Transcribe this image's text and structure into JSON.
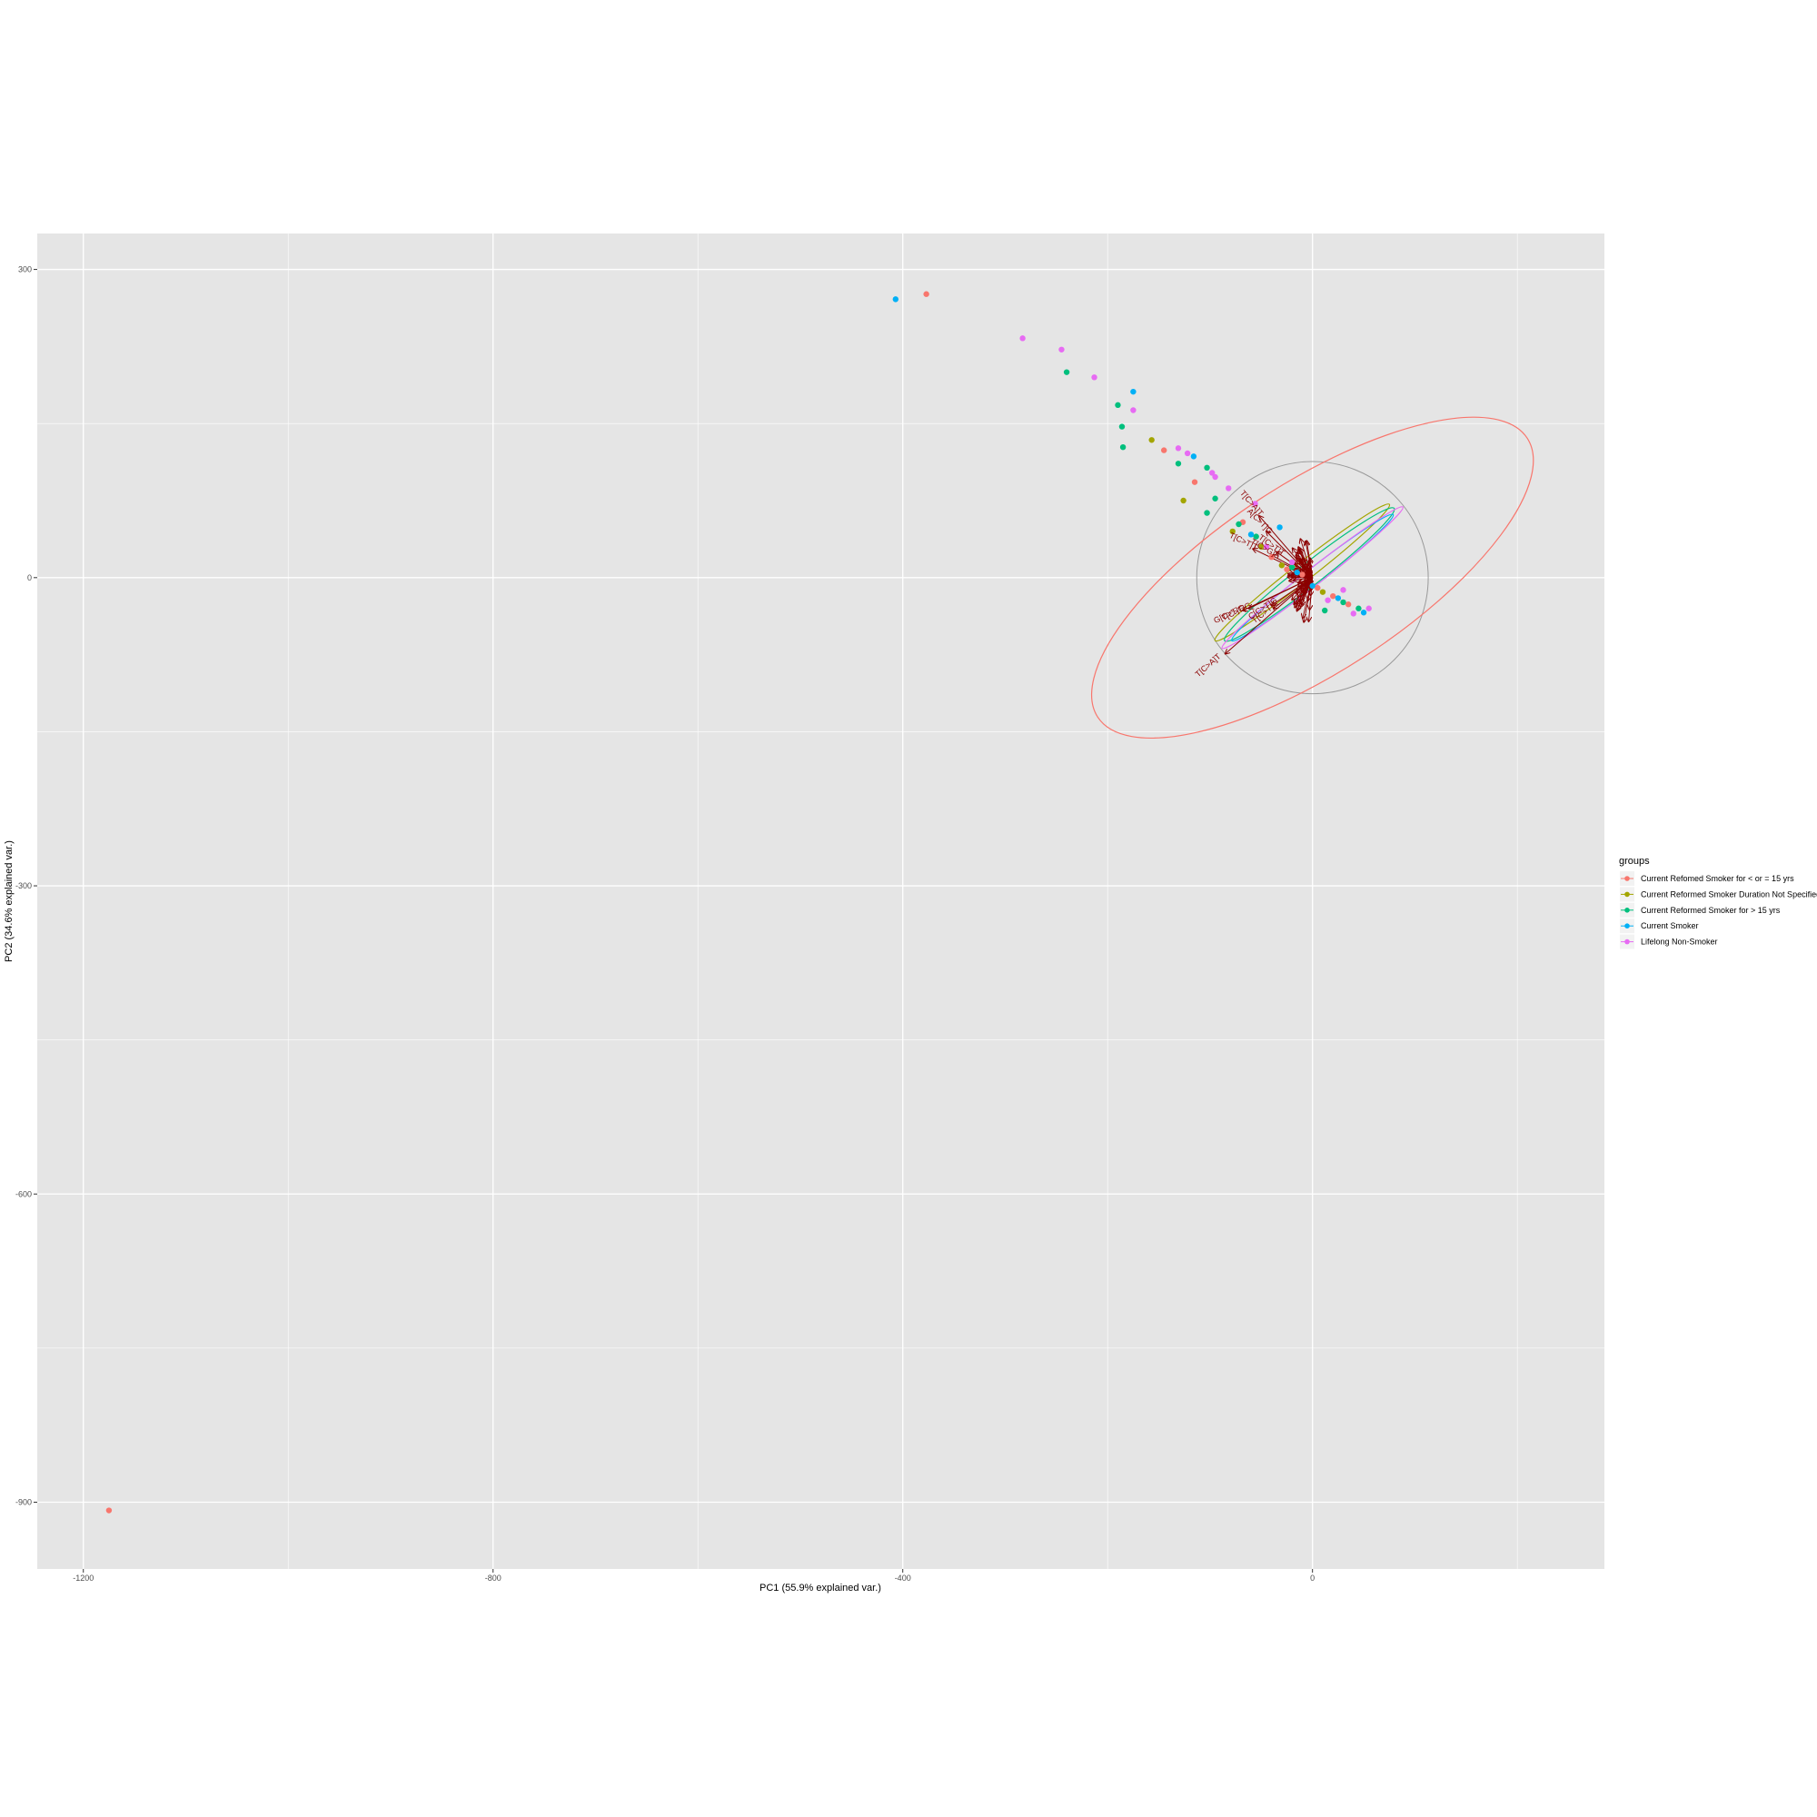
{
  "chart_data": {
    "type": "scatter",
    "xlabel": "PC1 (55.9% explained var.)",
    "ylabel": "PC2 (34.6% explained var.)",
    "xlim": [
      -1245,
      285
    ],
    "ylim": [
      -965,
      335
    ],
    "x_ticks": [
      -1200,
      -800,
      -400,
      0
    ],
    "y_ticks": [
      300,
      0,
      -300,
      -600,
      -900
    ],
    "grid": true,
    "legend": {
      "title": "groups",
      "position": "right",
      "entries": [
        {
          "name": "Current Refomed Smoker for < or = 15 yrs",
          "color": "#F8766D"
        },
        {
          "name": "Current Reformed Smoker Duration Not Specified",
          "color": "#A3A500"
        },
        {
          "name": "Current Reformed Smoker for > 15 yrs",
          "color": "#00BF7D"
        },
        {
          "name": "Current Smoker",
          "color": "#00B0F6"
        },
        {
          "name": "Lifelong Non-Smoker",
          "color": "#E76BF3"
        }
      ]
    },
    "series": [
      {
        "name": "Current Refomed Smoker for < or = 15 yrs",
        "color": "#F8766D",
        "points": [
          [
            -1175,
            -908
          ],
          [
            -377,
            276
          ],
          [
            -145,
            124
          ],
          [
            -115,
            93
          ],
          [
            -68,
            54
          ],
          [
            -40,
            20
          ],
          [
            -25,
            8
          ],
          [
            5,
            -10
          ],
          [
            20,
            -18
          ],
          [
            35,
            -26
          ],
          [
            -10,
            3
          ]
        ]
      },
      {
        "name": "Current Reformed Smoker Duration Not Specified",
        "color": "#A3A500",
        "points": [
          [
            -157,
            134
          ],
          [
            -126,
            75
          ],
          [
            -78,
            45
          ],
          [
            -50,
            30
          ],
          [
            -30,
            12
          ],
          [
            10,
            -14
          ]
        ]
      },
      {
        "name": "Current Reformed Smoker for > 15 yrs",
        "color": "#00BF7D",
        "points": [
          [
            -240,
            200
          ],
          [
            -190,
            168
          ],
          [
            -186,
            147
          ],
          [
            -185,
            127
          ],
          [
            -131,
            111
          ],
          [
            -103,
            107
          ],
          [
            -103,
            63
          ],
          [
            -95,
            77
          ],
          [
            -72,
            52
          ],
          [
            -55,
            40
          ],
          [
            12,
            -32
          ],
          [
            30,
            -24
          ],
          [
            -20,
            10
          ],
          [
            45,
            -30
          ]
        ]
      },
      {
        "name": "Current Smoker",
        "color": "#00B0F6",
        "points": [
          [
            -407,
            271
          ],
          [
            -175,
            181
          ],
          [
            -116,
            118
          ],
          [
            -32,
            49
          ],
          [
            -60,
            42
          ],
          [
            0,
            -8
          ],
          [
            25,
            -20
          ],
          [
            50,
            -34
          ],
          [
            -15,
            5
          ]
        ]
      },
      {
        "name": "Lifelong Non-Smoker",
        "color": "#E76BF3",
        "points": [
          [
            -283,
            233
          ],
          [
            -245,
            222
          ],
          [
            -213,
            195
          ],
          [
            -175,
            163
          ],
          [
            -131,
            126
          ],
          [
            -122,
            121
          ],
          [
            -98,
            102
          ],
          [
            -95,
            98
          ],
          [
            -82,
            87
          ],
          [
            -56,
            72
          ],
          [
            -45,
            30
          ],
          [
            -20,
            15
          ],
          [
            15,
            -22
          ],
          [
            40,
            -35
          ],
          [
            55,
            -30
          ],
          [
            30,
            -12
          ]
        ]
      }
    ],
    "ellipses": [
      {
        "group": "Current Refomed Smoker for < or = 15 yrs",
        "color": "#F8766D",
        "cx": 0,
        "cy": 0,
        "rx": 250,
        "ry": 92,
        "angle_deg": -33
      },
      {
        "group": "Current Reformed Smoker Duration Not Specified",
        "color": "#A3A500",
        "cx": -10,
        "cy": 5,
        "rx": 108,
        "ry": 9,
        "angle_deg": -38
      },
      {
        "group": "Current Reformed Smoker for > 15 yrs",
        "color": "#00BF7D",
        "cx": -3,
        "cy": 3,
        "rx": 105,
        "ry": 11,
        "angle_deg": -38
      },
      {
        "group": "Current Smoker",
        "color": "#00B0F6",
        "cx": 0,
        "cy": 0,
        "rx": 100,
        "ry": 8,
        "angle_deg": -38
      },
      {
        "group": "Lifelong Non-Smoker",
        "color": "#E76BF3",
        "cx": 0,
        "cy": 0,
        "rx": 112,
        "ry": 8,
        "angle_deg": -38
      }
    ],
    "correlation_circle": {
      "radius": 113,
      "color": "#999999"
    },
    "vector_color": "#8b0000",
    "vectors": [
      {
        "label": "T[C>A]T",
        "x": -85,
        "y": -74
      },
      {
        "label": "T[C>T]G",
        "x": -62,
        "y": -30
      },
      {
        "label": "G[C>T]G",
        "x": -68,
        "y": -32
      },
      {
        "label": "C[C>T]G",
        "x": -40,
        "y": -27
      },
      {
        "label": "T[C>T]A",
        "x": -38,
        "y": -30
      },
      {
        "label": "T[C>T]T",
        "x": -58,
        "y": 28
      },
      {
        "label": "T[C>A]T",
        "x": -52,
        "y": 60
      },
      {
        "label": "T[C>G]A",
        "x": -40,
        "y": 22
      },
      {
        "label": "T[C>T]T",
        "x": -35,
        "y": 25
      },
      {
        "label": "A[C>T]G",
        "x": -45,
        "y": 45
      }
    ],
    "vector_bundle_count": 90
  }
}
